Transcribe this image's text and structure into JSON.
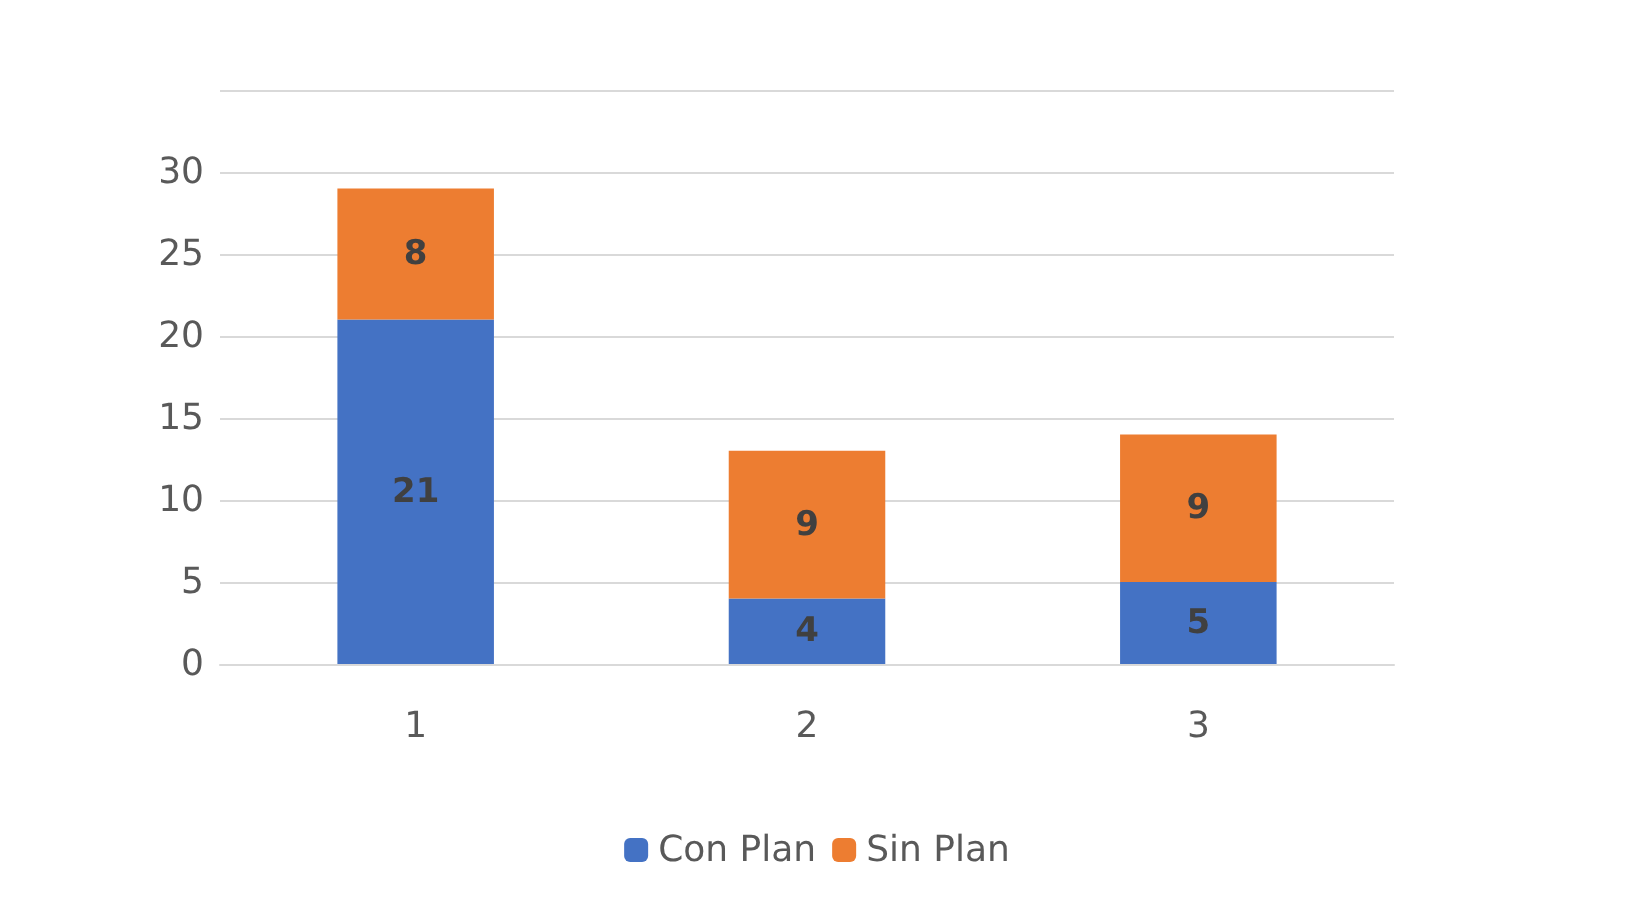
{
  "chart_data": {
    "type": "bar",
    "stacked": true,
    "categories": [
      "1",
      "2",
      "3"
    ],
    "series": [
      {
        "name": "Con Plan",
        "color": "#4472c4",
        "values": [
          21,
          4,
          5
        ]
      },
      {
        "name": "Sin Plan",
        "color": "#ed7d31",
        "values": [
          8,
          9,
          9
        ]
      }
    ],
    "ylim": [
      0,
      35
    ],
    "yticks": [
      0,
      5,
      10,
      15,
      20,
      25,
      30,
      {
        "value": 35,
        "label": null
      }
    ],
    "grid": "y",
    "legend": "bottom",
    "data_labels": true
  }
}
